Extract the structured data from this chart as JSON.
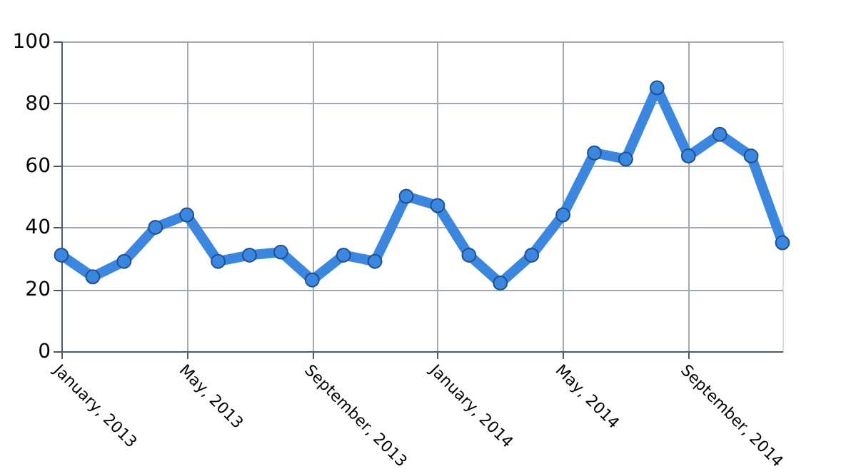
{
  "chart_data": {
    "type": "line",
    "categories": [
      "January, 2013",
      null,
      null,
      null,
      "May, 2013",
      null,
      null,
      null,
      "September, 2013",
      null,
      null,
      null,
      "January, 2014",
      null,
      null,
      null,
      "May, 2014",
      null,
      null,
      null,
      "September, 2014",
      null,
      null,
      null
    ],
    "series": [
      {
        "color": "#3b87e0",
        "values": [
          31,
          24,
          29,
          40,
          44,
          29,
          31,
          32,
          23,
          31,
          29,
          50,
          47,
          31,
          22,
          31,
          44,
          64,
          62,
          85,
          63,
          70,
          63,
          35
        ]
      }
    ],
    "ylim": [
      0,
      100
    ],
    "yticks": [
      0,
      20,
      40,
      60,
      80,
      100
    ],
    "grid": true,
    "marker": "circle",
    "line_style": "solid",
    "legend": false
  }
}
